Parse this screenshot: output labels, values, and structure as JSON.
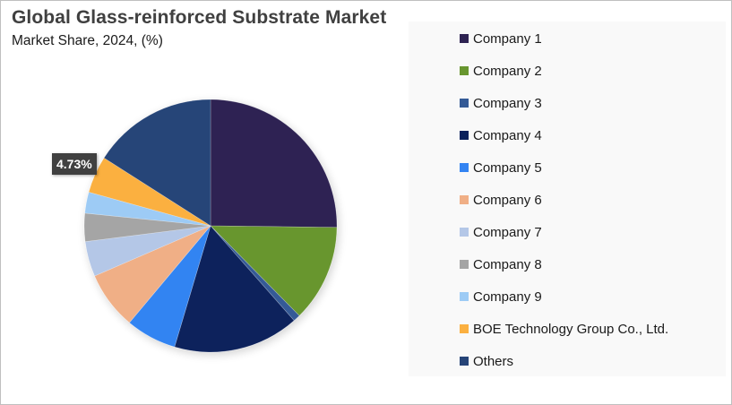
{
  "chart": {
    "title": "Global Glass-reinforced Substrate Market",
    "subtitle": "Market Share, 2024, (%)",
    "data_label": "4.73%"
  },
  "legend": {
    "items": [
      {
        "label": "Company 1",
        "color": "#2E2352"
      },
      {
        "label": "Company 2",
        "color": "#68962F"
      },
      {
        "label": "Company 3",
        "color": "#345A96"
      },
      {
        "label": "Company 4",
        "color": "#0A205C"
      },
      {
        "label": "Company 5",
        "color": "#3384F2"
      },
      {
        "label": "Company 6",
        "color": "#F0AF86"
      },
      {
        "label": "Company 7",
        "color": "#B4C7E7"
      },
      {
        "label": "Company 8",
        "color": "#A5A5A5"
      },
      {
        "label": "Company 9",
        "color": "#9DCBF5"
      },
      {
        "label": "BOE Technology Group Co., Ltd.",
        "color": "#FBB040"
      },
      {
        "label": "Others",
        "color": "#264478"
      }
    ]
  },
  "chart_data": {
    "type": "pie",
    "title": "Global Glass-reinforced Substrate Market",
    "subtitle": "Market Share, 2024, (%)",
    "categories": [
      "Company 1",
      "Company 2",
      "Company 3",
      "Company 4",
      "Company 5",
      "Company 6",
      "Company 7",
      "Company 8",
      "Company 9",
      "BOE Technology Group Co., Ltd.",
      "Others"
    ],
    "values": [
      25.2,
      12.4,
      0.9,
      16.1,
      6.5,
      7.4,
      4.5,
      3.6,
      2.7,
      4.73,
      15.97
    ],
    "colors": [
      "#2E2352",
      "#68962F",
      "#345A96",
      "#0A205C",
      "#3384F2",
      "#F0AF86",
      "#B4C7E7",
      "#A5A5A5",
      "#9DCBF5",
      "#FBB040",
      "#264478"
    ],
    "annotations": [
      {
        "category": "BOE Technology Group Co., Ltd.",
        "text": "4.73%"
      }
    ],
    "start_angle": 0,
    "direction": "clockwise",
    "legend_position": "right",
    "units": "%"
  }
}
